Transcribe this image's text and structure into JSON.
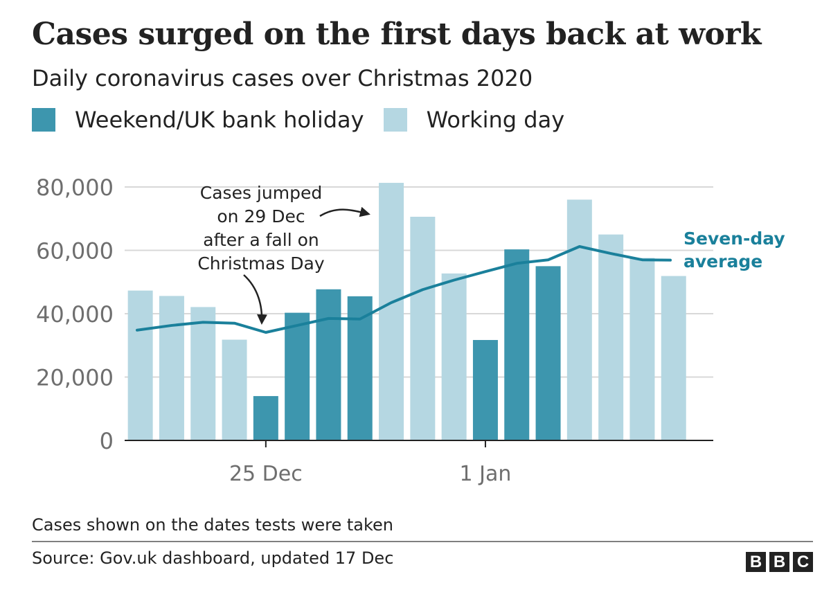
{
  "colors": {
    "weekend": "#3d96ae",
    "working": "#b5d7e2",
    "average": "#1a809b",
    "grid": "#d8d8d8",
    "axis_text": "#6e6e6e",
    "text": "#222222"
  },
  "chart_data": {
    "type": "bar",
    "title": "Cases surged on the first days back at work",
    "subtitle": "Daily coronavirus cases over Christmas 2020",
    "legend": [
      {
        "label": "Weekend/UK bank holiday",
        "key": "weekend"
      },
      {
        "label": "Working day",
        "key": "working"
      }
    ],
    "y_ticks": [
      0,
      20000,
      40000,
      60000,
      80000
    ],
    "y_tick_labels": [
      "0",
      "20,000",
      "40,000",
      "60,000",
      "80,000"
    ],
    "ylim": [
      0,
      80000
    ],
    "x_tick_labels": [
      {
        "label": "25 Dec",
        "index": 4
      },
      {
        "label": "1 Jan",
        "index": 11
      }
    ],
    "days": [
      "21 Dec",
      "22 Dec",
      "23 Dec",
      "24 Dec",
      "25 Dec",
      "26 Dec",
      "27 Dec",
      "28 Dec",
      "29 Dec",
      "30 Dec",
      "31 Dec",
      "1 Jan",
      "2 Jan",
      "3 Jan",
      "4 Jan",
      "5 Jan",
      "6 Jan",
      "7 Jan"
    ],
    "values": [
      47300,
      45600,
      42100,
      31800,
      14000,
      40300,
      47700,
      45500,
      81300,
      70600,
      52700,
      31700,
      60300,
      55000,
      76000,
      65000,
      57600,
      51900
    ],
    "day_types": [
      "working",
      "working",
      "working",
      "working",
      "weekend",
      "weekend",
      "weekend",
      "weekend",
      "working",
      "working",
      "working",
      "weekend",
      "weekend",
      "weekend",
      "working",
      "working",
      "working",
      "working"
    ],
    "series": [
      {
        "name": "Seven-day average",
        "values": [
          34800,
          36300,
          37300,
          37000,
          34100,
          36300,
          38500,
          38300,
          43500,
          47600,
          50600,
          53300,
          55900,
          57000,
          61200,
          59000,
          57000,
          56900
        ]
      }
    ],
    "series_label": [
      "Seven-day",
      "average"
    ],
    "annotation": {
      "lines": [
        "Cases jumped",
        "on 29 Dec",
        "after a fall on",
        "Christmas Day"
      ],
      "arrow_targets": [
        "29 Dec",
        "25 Dec"
      ]
    }
  },
  "footer": {
    "note": "Cases shown on the dates tests were taken",
    "source": "Source: Gov.uk dashboard, updated 17 Dec",
    "logo_letters": [
      "B",
      "B",
      "C"
    ]
  }
}
